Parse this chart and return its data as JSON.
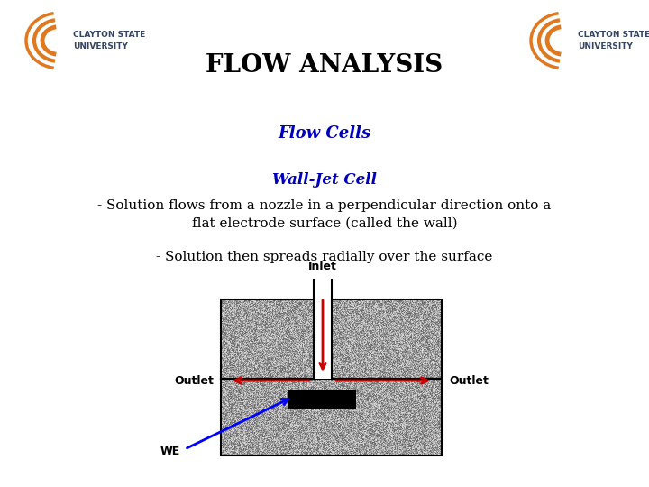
{
  "title": "FLOW ANALYSIS",
  "title_fontsize": 20,
  "title_fontweight": "bold",
  "subtitle": "Flow Cells",
  "subtitle_color": "#0000bb",
  "subtitle_fontsize": 13,
  "walljet_title": "Wall-Jet Cell",
  "walljet_color": "#0000bb",
  "walljet_fontsize": 12,
  "line1": "- Solution flows from a nozzle in a perpendicular direction onto a",
  "line2": "flat electrode surface (called the wall)",
  "line3": "- Solution then spreads radially over the surface",
  "body_fontsize": 11,
  "bg_color": "#ffffff",
  "cell_gray": "#b8b8b8",
  "arrow_color": "#cc0000",
  "inlet_label": "Inlet",
  "outlet_label": "Outlet",
  "we_label": "WE",
  "logo_color_orange": "#e07820",
  "logo_color_blue": "#334466"
}
